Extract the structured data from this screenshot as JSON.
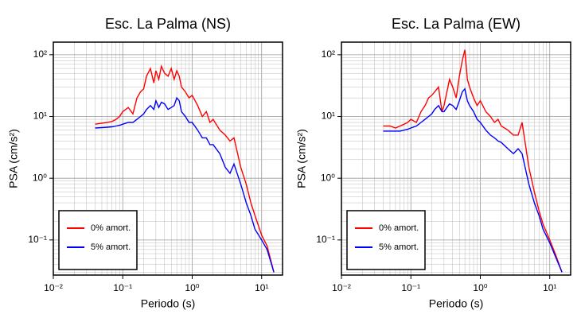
{
  "chart_data": [
    {
      "type": "line",
      "title": "Esc. La Palma (NS)",
      "x_label": "Periodo (s)",
      "y_label": "PSA (cm/s²)",
      "xscale": "log",
      "yscale": "log",
      "grid": true,
      "legend": "lower left",
      "xlim": [
        0.01,
        20
      ],
      "ylim": [
        0.027,
        160
      ],
      "xticks": [
        {
          "value": 0.01,
          "label": "10⁻²"
        },
        {
          "value": 0.1,
          "label": "10⁻¹"
        },
        {
          "value": 1,
          "label": "10⁰"
        },
        {
          "value": 10,
          "label": "10¹"
        }
      ],
      "yticks": [
        {
          "value": 0.1,
          "label": "10⁻¹"
        },
        {
          "value": 1,
          "label": "10⁰"
        },
        {
          "value": 10,
          "label": "10¹"
        },
        {
          "value": 100,
          "label": "10²"
        }
      ],
      "x": [
        0.04,
        0.05,
        0.06,
        0.07,
        0.08,
        0.09,
        0.1,
        0.12,
        0.14,
        0.16,
        0.18,
        0.2,
        0.22,
        0.25,
        0.28,
        0.3,
        0.33,
        0.36,
        0.4,
        0.45,
        0.5,
        0.55,
        0.6,
        0.65,
        0.7,
        0.8,
        0.9,
        1,
        1.2,
        1.4,
        1.6,
        1.8,
        2,
        2.5,
        3,
        3.5,
        4,
        5,
        6,
        7,
        8,
        10,
        12,
        15
      ],
      "series": [
        {
          "name": "0% amort.",
          "color": "#ff0000",
          "values": [
            7.5,
            7.8,
            8,
            8.3,
            9,
            10,
            12,
            14,
            11,
            20,
            25,
            28,
            45,
            60,
            35,
            55,
            40,
            65,
            50,
            45,
            60,
            40,
            55,
            45,
            30,
            25,
            20,
            22,
            15,
            10,
            12,
            8,
            9,
            6,
            5,
            4,
            4.5,
            1.5,
            0.8,
            0.4,
            0.25,
            0.12,
            0.08,
            0.03
          ]
        },
        {
          "name": "5% amort.",
          "color": "#0000ff",
          "values": [
            6.5,
            6.6,
            6.7,
            6.8,
            7,
            7.2,
            7.5,
            8,
            8,
            9,
            10,
            11,
            13,
            15,
            13,
            18,
            14,
            17,
            16,
            13,
            14,
            15,
            20,
            18,
            12,
            10,
            8,
            8,
            6,
            4.5,
            4.5,
            3.5,
            3.5,
            2.5,
            1.5,
            1.2,
            1.7,
            0.8,
            0.4,
            0.25,
            0.15,
            0.1,
            0.07,
            0.03
          ]
        }
      ]
    },
    {
      "type": "line",
      "title": "Esc. La Palma (EW)",
      "x_label": "Periodo (s)",
      "y_label": "PSA (cm/s²)",
      "xscale": "log",
      "yscale": "log",
      "grid": true,
      "legend": "lower left",
      "xlim": [
        0.01,
        20
      ],
      "ylim": [
        0.027,
        160
      ],
      "xticks": [
        {
          "value": 0.01,
          "label": "10⁻²"
        },
        {
          "value": 0.1,
          "label": "10⁻¹"
        },
        {
          "value": 1,
          "label": "10⁰"
        },
        {
          "value": 10,
          "label": "10¹"
        }
      ],
      "yticks": [
        {
          "value": 0.1,
          "label": "10⁻¹"
        },
        {
          "value": 1,
          "label": "10⁰"
        },
        {
          "value": 10,
          "label": "10¹"
        },
        {
          "value": 100,
          "label": "10²"
        }
      ],
      "x": [
        0.04,
        0.05,
        0.06,
        0.07,
        0.08,
        0.09,
        0.1,
        0.12,
        0.14,
        0.16,
        0.18,
        0.2,
        0.22,
        0.25,
        0.28,
        0.3,
        0.33,
        0.36,
        0.4,
        0.45,
        0.5,
        0.55,
        0.6,
        0.65,
        0.7,
        0.8,
        0.9,
        1,
        1.2,
        1.4,
        1.6,
        1.8,
        2,
        2.5,
        3,
        3.5,
        4,
        5,
        6,
        7,
        8,
        10,
        12,
        15
      ],
      "series": [
        {
          "name": "0% amort.",
          "color": "#ff0000",
          "values": [
            7,
            7,
            6.5,
            7,
            7.5,
            8,
            9,
            8,
            12,
            15,
            20,
            22,
            25,
            30,
            12,
            15,
            25,
            40,
            30,
            20,
            45,
            80,
            120,
            40,
            30,
            20,
            15,
            18,
            12,
            10,
            8,
            9,
            7,
            6,
            5,
            5,
            8,
            1.5,
            0.6,
            0.3,
            0.18,
            0.1,
            0.06,
            0.03
          ]
        },
        {
          "name": "5% amort.",
          "color": "#0000ff",
          "values": [
            5.8,
            5.8,
            5.8,
            5.8,
            6,
            6.2,
            6.5,
            7,
            8,
            9,
            10,
            11,
            13,
            15,
            12,
            12,
            14,
            16,
            15,
            13,
            18,
            25,
            28,
            18,
            15,
            12,
            9,
            8,
            6,
            5,
            4.5,
            4,
            3.8,
            3,
            2.5,
            3,
            2.5,
            0.8,
            0.4,
            0.25,
            0.15,
            0.09,
            0.055,
            0.03
          ]
        }
      ]
    }
  ]
}
